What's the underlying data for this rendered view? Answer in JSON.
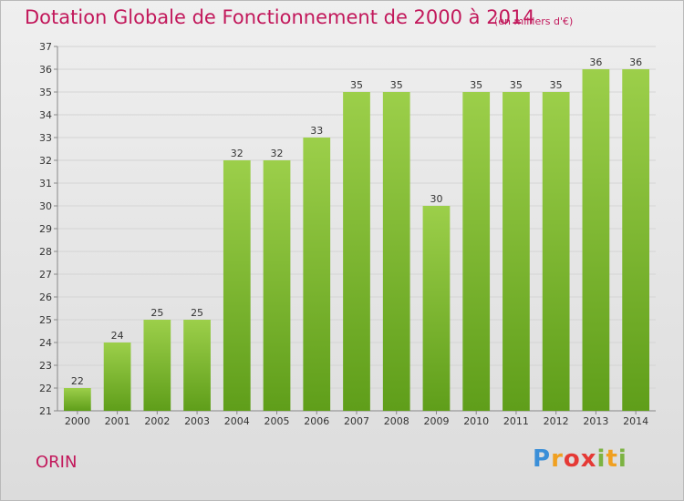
{
  "header": {
    "title": "Dotation Globale de Fonctionnement de 2000 à 2014",
    "subtitle": "(en milliers d'€)"
  },
  "footer": {
    "commune": "ORIN",
    "logo": "Proxiti"
  },
  "colors": {
    "title": "#c2185b",
    "bar_top": "#9ccf4a",
    "bar_bottom": "#5f9e1a",
    "grid": "#d4d4d4",
    "axis_text": "#333333"
  },
  "chart_data": {
    "type": "bar",
    "categories": [
      "2000",
      "2001",
      "2002",
      "2003",
      "2004",
      "2005",
      "2006",
      "2007",
      "2008",
      "2009",
      "2010",
      "2011",
      "2012",
      "2013",
      "2014"
    ],
    "values": [
      22,
      24,
      25,
      25,
      32,
      32,
      33,
      35,
      35,
      30,
      35,
      35,
      35,
      36,
      36
    ],
    "ylim": [
      21,
      37
    ],
    "yticks": [
      21,
      22,
      23,
      24,
      25,
      26,
      27,
      28,
      29,
      30,
      31,
      32,
      33,
      34,
      35,
      36,
      37
    ],
    "grid": true,
    "legend": "none"
  }
}
